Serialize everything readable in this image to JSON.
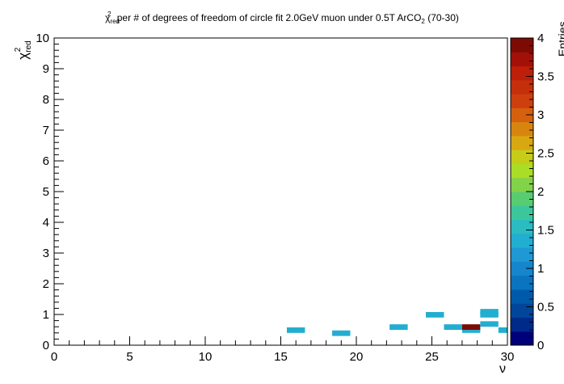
{
  "chart_data": {
    "type": "heatmap",
    "title": {
      "chi": "χ",
      "sup": "2",
      "sub": "red",
      "text": " per # of degrees of freedom of circle fit 2.0GeV muon under 0.5T ArCO",
      "sub2": "2",
      "tail": " (70-30)"
    },
    "xlabel": "ν",
    "ylabel": {
      "chi": "χ",
      "sup": "2",
      "sub": "red"
    },
    "xlim": [
      0,
      30
    ],
    "ylim": [
      0,
      10
    ],
    "x_major_ticks": [
      0,
      5,
      10,
      15,
      20,
      25,
      30
    ],
    "y_major_ticks": [
      0,
      1,
      2,
      3,
      4,
      5,
      6,
      7,
      8,
      9,
      10
    ],
    "bin_width_x": 1.2,
    "bin_height_y": 0.1,
    "cells": [
      {
        "x": 16.0,
        "y": 0.4,
        "value": 1.3
      },
      {
        "x": 19.0,
        "y": 0.3,
        "value": 1.3
      },
      {
        "x": 22.8,
        "y": 0.5,
        "value": 1.3
      },
      {
        "x": 25.2,
        "y": 0.9,
        "value": 1.3
      },
      {
        "x": 26.4,
        "y": 0.5,
        "value": 1.3
      },
      {
        "x": 27.6,
        "y": 0.4,
        "value": 1.3
      },
      {
        "x": 27.6,
        "y": 0.5,
        "value": 4.0
      },
      {
        "x": 28.8,
        "y": 0.6,
        "value": 1.3
      },
      {
        "x": 28.8,
        "y": 0.9,
        "value": 1.3
      },
      {
        "x": 28.8,
        "y": 1.0,
        "value": 1.3
      },
      {
        "x": 30.0,
        "y": 0.4,
        "value": 1.3
      }
    ],
    "colorbar": {
      "zlim": [
        0,
        4
      ],
      "ticks": [
        "0",
        "0.5",
        "1",
        "1.5",
        "2",
        "2.5",
        "3",
        "3.5",
        "4"
      ],
      "palette": [
        "#00007a",
        "#002a8a",
        "#01469b",
        "#005aaa",
        "#0a74c0",
        "#1585cc",
        "#1f98d4",
        "#22aed0",
        "#2bbcc2",
        "#3cc69c",
        "#58cc70",
        "#82d24a",
        "#aadd26",
        "#c6cc18",
        "#d8a812",
        "#d88510",
        "#d5610f",
        "#cd400d",
        "#c52f0b",
        "#bd1f09",
        "#a31008",
        "#7d0b05"
      ],
      "axis_label": "Entries"
    }
  }
}
